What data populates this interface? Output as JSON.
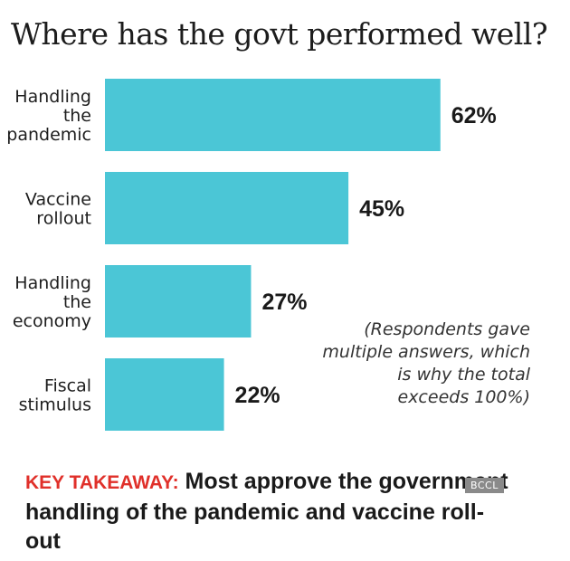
{
  "chart_data": {
    "type": "bar",
    "orientation": "horizontal",
    "title": "Where has the govt performed well?",
    "categories": [
      [
        "Handling",
        "the",
        "pandemic"
      ],
      [
        "Vaccine",
        "rollout"
      ],
      [
        "Handling",
        "the",
        "economy"
      ],
      [
        "Fiscal",
        "stimulus"
      ]
    ],
    "values": [
      62,
      45,
      27,
      22
    ],
    "value_labels": [
      "62%",
      "45%",
      "27%",
      "22%"
    ],
    "unit": "%",
    "xlim": [
      0,
      100
    ],
    "grid": false,
    "bar_color": "#4bc6d6"
  },
  "note": "(Respondents gave multiple answers, which is why the total exceeds 100%)",
  "takeaway": {
    "label": "KEY TAKEAWAY:",
    "text": " Most approve the government handling of the pandemic and vaccine roll-out"
  },
  "credit": "BCCL",
  "colors": {
    "accent": "#e0302a",
    "bar": "#4bc6d6"
  }
}
